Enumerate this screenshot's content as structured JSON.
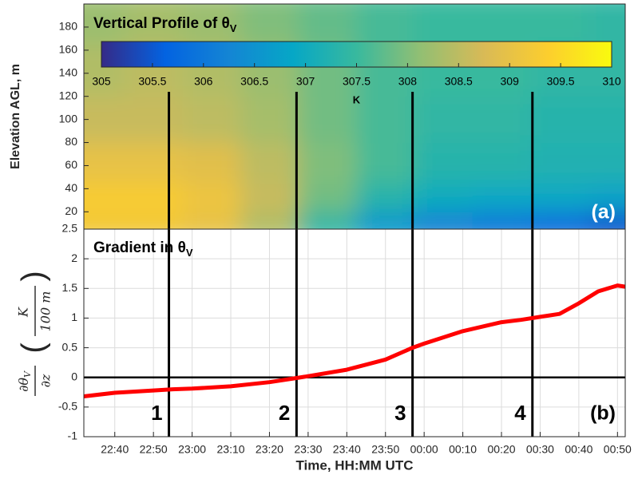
{
  "chart_data": [
    {
      "type": "heatmap",
      "title": "Vertical Profile of θ",
      "title_subscript": "V",
      "ylabel": "Elevation AGL, m",
      "x": [
        1355,
        1370,
        1385,
        1400,
        1415,
        1430,
        1445,
        1460,
        1475,
        1490
      ],
      "y": [
        10,
        30,
        60,
        100,
        140,
        190
      ],
      "z": [
        [
          309.2,
          309.2,
          309.0,
          308.4,
          307.4,
          306.6,
          306.2,
          306.0,
          305.8,
          305.5
        ],
        [
          309.3,
          309.3,
          309.1,
          308.6,
          307.9,
          307.3,
          307.0,
          306.9,
          306.9,
          306.8
        ],
        [
          309.0,
          309.0,
          308.9,
          308.5,
          308.0,
          307.6,
          307.3,
          307.3,
          307.2,
          307.2
        ],
        [
          308.6,
          308.6,
          308.5,
          308.3,
          307.9,
          307.6,
          307.4,
          307.4,
          307.3,
          307.3
        ],
        [
          308.4,
          308.5,
          308.4,
          308.2,
          307.9,
          307.6,
          307.5,
          307.5,
          307.4,
          307.4
        ],
        [
          308.2,
          308.3,
          308.2,
          308.0,
          307.8,
          307.6,
          307.5,
          307.5,
          307.5,
          307.4
        ]
      ],
      "xlim": [
        1352,
        1492
      ],
      "ylim": [
        5,
        200
      ],
      "yticks": [
        20,
        40,
        60,
        80,
        100,
        120,
        140,
        160,
        180
      ],
      "colorbar": {
        "clim": [
          305,
          310
        ],
        "ticks": [
          305,
          305.5,
          306,
          306.5,
          307,
          307.5,
          308,
          308.5,
          309,
          309.5,
          310
        ],
        "label": "K",
        "colormap": "parula"
      },
      "vlines": [
        1374,
        1407,
        1437,
        1468
      ],
      "vline_color": "#000000",
      "panel_label": "(a)"
    },
    {
      "type": "line",
      "title": "Gradient in θ",
      "title_subscript": "V",
      "ylabel": {
        "numerator": "∂θ",
        "numerator_subscript": "V",
        "denominator": "∂z",
        "unit_numerator": "K",
        "unit_denominator": "100 m"
      },
      "xlabel": "Time, HH:MM UTC",
      "x": [
        1352,
        1360,
        1370,
        1375,
        1380,
        1390,
        1400,
        1407,
        1410,
        1420,
        1430,
        1437,
        1440,
        1450,
        1460,
        1465,
        1470,
        1475,
        1480,
        1485,
        1490,
        1492
      ],
      "values": [
        -0.32,
        -0.26,
        -0.22,
        -0.2,
        -0.19,
        -0.15,
        -0.08,
        -0.01,
        0.02,
        0.13,
        0.3,
        0.5,
        0.57,
        0.78,
        0.93,
        0.97,
        1.02,
        1.07,
        1.25,
        1.45,
        1.55,
        1.53
      ],
      "color": "#ff0000",
      "xlim": [
        1352,
        1492
      ],
      "ylim": [
        -1,
        2.5
      ],
      "xticks": [
        {
          "value": 1360,
          "label": "22:40"
        },
        {
          "value": 1370,
          "label": "22:50"
        },
        {
          "value": 1380,
          "label": "23:00"
        },
        {
          "value": 1390,
          "label": "23:10"
        },
        {
          "value": 1400,
          "label": "23:20"
        },
        {
          "value": 1410,
          "label": "23:30"
        },
        {
          "value": 1420,
          "label": "23:40"
        },
        {
          "value": 1430,
          "label": "23:50"
        },
        {
          "value": 1440,
          "label": "00:00"
        },
        {
          "value": 1450,
          "label": "00:10"
        },
        {
          "value": 1460,
          "label": "00:20"
        },
        {
          "value": 1470,
          "label": "00:30"
        },
        {
          "value": 1480,
          "label": "00:40"
        },
        {
          "value": 1490,
          "label": "00:50"
        }
      ],
      "yticks": [
        -1,
        -0.5,
        0,
        0.5,
        1,
        1.5,
        2,
        2.5
      ],
      "grid": true,
      "hline": 0,
      "vlines": [
        1374,
        1407,
        1437,
        1468
      ],
      "vline_labels": [
        "1",
        "2",
        "3",
        "4"
      ],
      "vline_color": "#000000",
      "panel_label": "(b)"
    }
  ]
}
